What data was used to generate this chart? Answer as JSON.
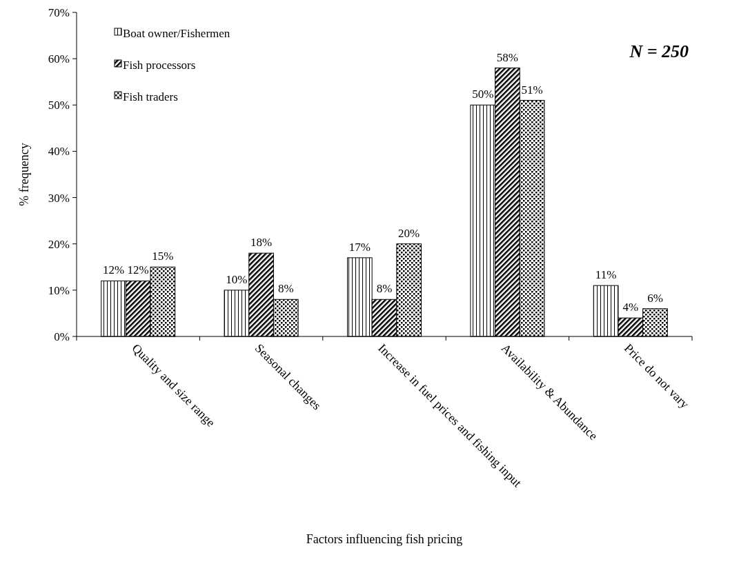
{
  "chart_data": {
    "type": "bar",
    "xlabel": "Factors influencing fish pricing",
    "ylabel": "%  frequency",
    "categories": [
      "Quality and size range",
      "Seasonal changes",
      "Increase in fuel prices and fishing input",
      "Availability & Abundance",
      "Price do not vary"
    ],
    "series": [
      {
        "name": "Boat owner/Fishermen",
        "color": "#000000",
        "values": [
          12,
          10,
          17,
          50,
          11
        ],
        "value_labels": [
          "12%",
          "10%",
          "17%",
          "50%",
          "11%"
        ]
      },
      {
        "name": "Fish processors",
        "color": "#000000",
        "values": [
          12,
          18,
          8,
          58,
          4
        ],
        "value_labels": [
          "12%",
          "18%",
          "8%",
          "58%",
          "4%"
        ]
      },
      {
        "name": "Fish traders",
        "color": "#000000",
        "values": [
          15,
          8,
          20,
          51,
          6
        ],
        "value_labels": [
          "15%",
          "8%",
          "20%",
          "51%",
          "6%"
        ]
      }
    ],
    "ylim": [
      0,
      70
    ],
    "yticks": [
      {
        "value": 0,
        "label": "0%"
      },
      {
        "value": 10,
        "label": "10%"
      },
      {
        "value": 20,
        "label": "20%"
      },
      {
        "value": 30,
        "label": "30%"
      },
      {
        "value": 40,
        "label": "40%"
      },
      {
        "value": 50,
        "label": "50%"
      },
      {
        "value": 60,
        "label": "60%"
      },
      {
        "value": 70,
        "label": "70%"
      }
    ],
    "grid": false,
    "legend": "top left",
    "annotations": [
      "N = 250"
    ]
  }
}
